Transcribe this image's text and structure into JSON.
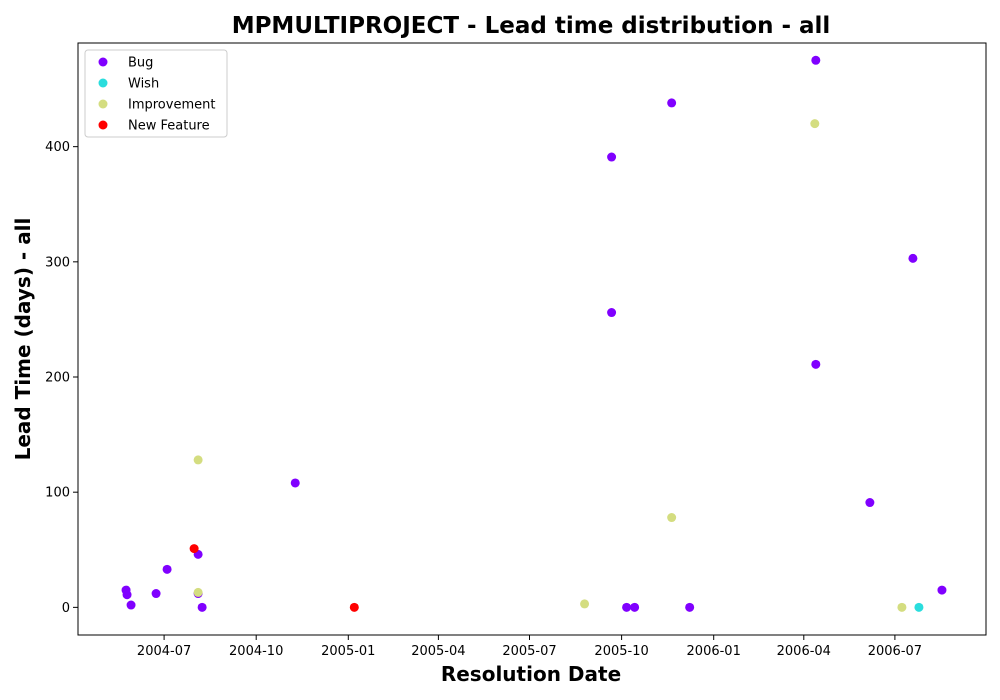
{
  "chart_data": {
    "type": "scatter",
    "title": "MPMULTIPROJECT - Lead time distribution - all",
    "xlabel": "Resolution Date",
    "ylabel": "Lead Time (days) - all",
    "x_type": "date",
    "xlim": [
      "2004-04-06",
      "2006-09-30"
    ],
    "ylim": [
      -24,
      490
    ],
    "x_ticks": [
      "2004-07",
      "2004-10",
      "2005-01",
      "2005-04",
      "2005-07",
      "2005-10",
      "2006-01",
      "2006-04",
      "2006-07"
    ],
    "y_ticks": [
      0,
      100,
      200,
      300,
      400
    ],
    "grid": false,
    "legend_position": "top-left",
    "series": [
      {
        "name": "Bug",
        "color": "#8000ff",
        "points": [
          {
            "x": "2004-05-24",
            "y": 15
          },
          {
            "x": "2004-05-25",
            "y": 11
          },
          {
            "x": "2004-05-29",
            "y": 2
          },
          {
            "x": "2004-06-23",
            "y": 12
          },
          {
            "x": "2004-07-04",
            "y": 33
          },
          {
            "x": "2004-08-04",
            "y": 46
          },
          {
            "x": "2004-08-04",
            "y": 12
          },
          {
            "x": "2004-08-08",
            "y": 0
          },
          {
            "x": "2004-11-09",
            "y": 108
          },
          {
            "x": "2005-09-21",
            "y": 391
          },
          {
            "x": "2005-09-21",
            "y": 256
          },
          {
            "x": "2005-10-06",
            "y": 0
          },
          {
            "x": "2005-10-14",
            "y": 0
          },
          {
            "x": "2005-11-20",
            "y": 438
          },
          {
            "x": "2005-12-08",
            "y": 0
          },
          {
            "x": "2006-04-13",
            "y": 475
          },
          {
            "x": "2006-04-13",
            "y": 211
          },
          {
            "x": "2006-06-06",
            "y": 91
          },
          {
            "x": "2006-07-19",
            "y": 303
          },
          {
            "x": "2006-08-17",
            "y": 15
          }
        ]
      },
      {
        "name": "Wish",
        "color": "#2adddd",
        "points": [
          {
            "x": "2006-07-25",
            "y": 0
          }
        ]
      },
      {
        "name": "Improvement",
        "color": "#d4dd80",
        "points": [
          {
            "x": "2004-08-04",
            "y": 128
          },
          {
            "x": "2004-08-04",
            "y": 13
          },
          {
            "x": "2005-08-25",
            "y": 3
          },
          {
            "x": "2005-11-20",
            "y": 78
          },
          {
            "x": "2006-04-12",
            "y": 420
          },
          {
            "x": "2006-07-08",
            "y": 0
          }
        ]
      },
      {
        "name": "New Feature",
        "color": "#ff0000",
        "points": [
          {
            "x": "2004-07-31",
            "y": 51
          },
          {
            "x": "2005-01-07",
            "y": 0
          }
        ]
      }
    ]
  }
}
